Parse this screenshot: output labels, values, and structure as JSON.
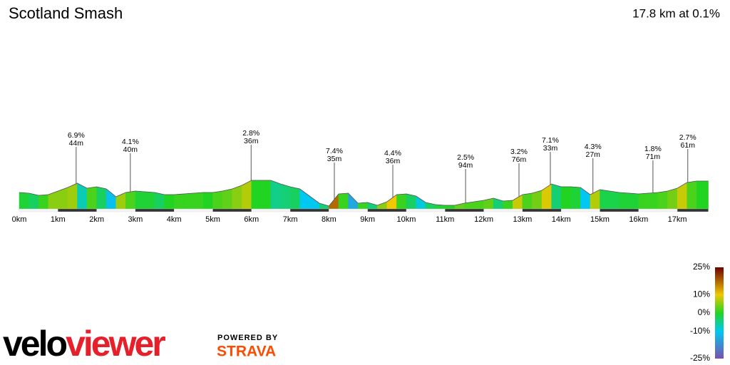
{
  "chart_data": {
    "type": "area",
    "title": "Scotland Smash",
    "subtitle": "17.8 km at 0.1%",
    "x": [
      0,
      0.25,
      0.5,
      0.75,
      1,
      1.25,
      1.5,
      1.75,
      2,
      2.25,
      2.5,
      2.75,
      3,
      3.25,
      3.5,
      3.75,
      4,
      4.25,
      4.5,
      4.75,
      5,
      5.25,
      5.5,
      5.75,
      6,
      6.25,
      6.5,
      6.75,
      7,
      7.25,
      7.5,
      7.75,
      8,
      8.25,
      8.5,
      8.75,
      9,
      9.25,
      9.5,
      9.75,
      10,
      10.25,
      10.5,
      10.75,
      11,
      11.25,
      11.5,
      11.75,
      12,
      12.25,
      12.5,
      12.75,
      13,
      13.25,
      13.5,
      13.75,
      14,
      14.25,
      14.5,
      14.75,
      15,
      15.25,
      15.5,
      15.75,
      16,
      16.25,
      16.5,
      16.75,
      17,
      17.25,
      17.5,
      17.8
    ],
    "values": [
      12.5,
      12,
      10.5,
      11,
      13.5,
      16,
      19,
      15.5,
      16.5,
      15,
      9.5,
      12.5,
      13.5,
      13,
      12.5,
      11,
      11,
      11.5,
      12,
      12.5,
      12.5,
      13.5,
      15,
      17.5,
      21,
      21,
      21,
      18.5,
      16.5,
      15,
      10,
      5,
      3,
      11.5,
      12,
      5,
      5.5,
      3.5,
      6,
      11,
      11.5,
      10,
      5.5,
      4,
      3.5,
      3.5,
      5,
      6,
      7,
      8.5,
      6.5,
      7,
      11,
      12,
      14,
      18.5,
      16.5,
      16.5,
      16,
      11,
      14.5,
      13.5,
      12.5,
      12,
      11.5,
      12,
      12.5,
      13.5,
      15.5,
      19.5,
      20.5,
      20.5
    ],
    "xlim": [
      0,
      17.8
    ],
    "ylim": [
      0,
      25
    ],
    "xticks": [
      {
        "value": 0,
        "label": "0km"
      },
      {
        "value": 1,
        "label": "1km"
      },
      {
        "value": 2,
        "label": "2km"
      },
      {
        "value": 3,
        "label": "3km"
      },
      {
        "value": 4,
        "label": "4km"
      },
      {
        "value": 5,
        "label": "5km"
      },
      {
        "value": 6,
        "label": "6km"
      },
      {
        "value": 7,
        "label": "7km"
      },
      {
        "value": 8,
        "label": "8km"
      },
      {
        "value": 9,
        "label": "9km"
      },
      {
        "value": 10,
        "label": "10km"
      },
      {
        "value": 11,
        "label": "11km"
      },
      {
        "value": 12,
        "label": "12km"
      },
      {
        "value": 13,
        "label": "13km"
      },
      {
        "value": 14,
        "label": "14km"
      },
      {
        "value": 15,
        "label": "15km"
      },
      {
        "value": 16,
        "label": "16km"
      },
      {
        "value": 17,
        "label": "17km"
      }
    ],
    "annotations": [
      {
        "x": 1.47,
        "grade": "6.9%",
        "length": "44m"
      },
      {
        "x": 2.87,
        "grade": "4.1%",
        "length": "40m"
      },
      {
        "x": 5.99,
        "grade": "2.8%",
        "length": "36m"
      },
      {
        "x": 8.14,
        "grade": "7.4%",
        "length": "35m"
      },
      {
        "x": 9.65,
        "grade": "4.4%",
        "length": "36m"
      },
      {
        "x": 11.53,
        "grade": "2.5%",
        "length": "94m"
      },
      {
        "x": 12.91,
        "grade": "3.2%",
        "length": "76m"
      },
      {
        "x": 13.72,
        "grade": "7.1%",
        "length": "33m"
      },
      {
        "x": 14.82,
        "grade": "4.3%",
        "length": "27m"
      },
      {
        "x": 16.37,
        "grade": "1.8%",
        "length": "71m"
      },
      {
        "x": 17.27,
        "grade": "2.7%",
        "length": "61m"
      }
    ],
    "colorscale": {
      "ylim": [
        -25,
        25
      ],
      "ticks": [
        {
          "value": 25,
          "label": "25%"
        },
        {
          "value": 10,
          "label": "10%"
        },
        {
          "value": 0,
          "label": "0%"
        },
        {
          "value": -10,
          "label": "-10%"
        },
        {
          "value": -25,
          "label": "-25%"
        }
      ],
      "colors": [
        "#6e0000",
        "#f0c800",
        "#22d422",
        "#00c8f0",
        "#7a4fb0"
      ]
    }
  },
  "branding": {
    "velo": "velo",
    "viewer": "viewer",
    "powered_by": "POWERED BY",
    "strava": "STRAVA"
  }
}
